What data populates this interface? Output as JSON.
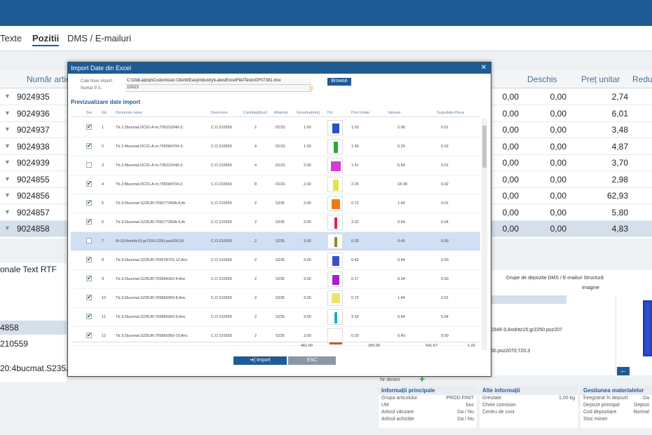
{
  "tabs": [
    "Texte",
    "Pozitii",
    "DMS / E-mailuri"
  ],
  "active_tab": "Pozitii",
  "bg_table": {
    "headers": [
      "Număr artico",
      "Deschis",
      "Preț unitar",
      "Redu"
    ],
    "rows": [
      {
        "nr": "9024935",
        "a": "0,00",
        "b": "0,00",
        "p": "2,74"
      },
      {
        "nr": "9024936",
        "a": "0,00",
        "b": "0,00",
        "p": "6,01"
      },
      {
        "nr": "9024937",
        "a": "0,00",
        "b": "0,00",
        "p": "3,48"
      },
      {
        "nr": "9024938",
        "a": "0,00",
        "b": "0,00",
        "p": "4,87"
      },
      {
        "nr": "9024939",
        "a": "0,00",
        "b": "0,00",
        "p": "3,70"
      },
      {
        "nr": "9024855",
        "a": "0,00",
        "b": "0,00",
        "p": "2,98"
      },
      {
        "nr": "9024856",
        "a": "0,00",
        "b": "0,00",
        "p": "62,93"
      },
      {
        "nr": "9024857",
        "a": "0,00",
        "b": "0,00",
        "p": "5,80"
      },
      {
        "nr": "9024858",
        "a": "0,00",
        "b": "0,00",
        "p": "4,83"
      }
    ]
  },
  "lower_left": {
    "tabs": "onale  Text RTF",
    "line1": "4858",
    "line2": "210559",
    "line3": "20:4bucmat.S235J"
  },
  "lower_right": {
    "tabs": "Grupe de depozite   DMS / E-mailuri   Structură",
    "imagine": "Imagine",
    "text1": "0349-3;Andritz15;gr2250.poz207",
    "text2": "50.poz2070;720.3"
  },
  "info_panels": {
    "p1": {
      "title": "Informații principale",
      "rows": [
        "Grupa articolului",
        "UM",
        "Articol vânzare",
        "Articol achiziție"
      ],
      "vals": [
        "PROD.FINIT",
        "buc",
        "Da / Nu",
        "Da / Nu"
      ]
    },
    "p2": {
      "title": "Alte informații",
      "rows": [
        "Greutate",
        "Cheie comision",
        "Centru de cost"
      ],
      "vals": [
        "1,00 kg",
        "",
        ""
      ]
    },
    "p3": {
      "title": "Gestiunea materialelor",
      "rows": [
        "Înregistrat în depozit",
        "Depozit principal",
        "Cod depozitare",
        "Stoc minim"
      ],
      "vals": [
        "Da",
        "Depozi",
        "Normal",
        ""
      ]
    },
    "nr_desen": "Nr desen"
  },
  "modal": {
    "title": "Import Date din Excel",
    "close": "✕",
    "fields": {
      "path_label": "Cale fisier import",
      "path_value": "C:\\OldLaptop\\Customizari Clienti\\EasyIndustry\\LatestExcelFile\\Tests\\DF07381.xlsx",
      "nr_label": "Numar P.A.",
      "nr_value": "10023"
    },
    "browse": "Browse",
    "section": "Previzualizare date import",
    "headers": [
      "Sel.",
      "No.",
      "Denumire reper",
      "Descriere",
      "Cantitate[buc]",
      "Material",
      "Grosime[mm]",
      "Pic.",
      "Pret Unitar",
      "Valoare",
      "Suprafata Piesa"
    ],
    "rows": [
      {
        "sel": true,
        "no": "1",
        "den": "Tb.1:2bucmat.DC01-A-m;705210349-3;",
        "desc": "C.O 210559",
        "qty": "2",
        "mat": "DC01",
        "gros": "1.00",
        "pret": "1.03",
        "val": "2.06",
        "supr": "0.01",
        "color": "#2b4fc6"
      },
      {
        "sel": true,
        "no": "2",
        "den": "Tb.1:4bucmat.DC01-A-m;705584704-3;",
        "desc": "C.O 210559",
        "qty": "4",
        "mat": "DC01",
        "gros": "1.00",
        "pret": "1.55",
        "val": "6.20",
        "supr": "0.02",
        "color": "#27a83a"
      },
      {
        "sel": false,
        "no": "3",
        "den": "Tb.2:4bucmat.DC01-A-m;705210349-2;",
        "desc": "C.O 210559",
        "qty": "4",
        "mat": "DC01",
        "gros": "2.00",
        "pret": "1.41",
        "val": "5.64",
        "supr": "0.01",
        "color": "#d13fd0"
      },
      {
        "sel": true,
        "no": "4",
        "den": "Tb.2:8bucmat.DC01-A-m;705584704-2;",
        "desc": "C.O 210559",
        "qty": "8",
        "mat": "DC01",
        "gros": "2.00",
        "pret": "2.26",
        "val": "18.08",
        "supr": "0.02",
        "color": "#e8e24a"
      },
      {
        "sel": true,
        "no": "5",
        "den": "Tb.3:2bucmat.S235JR;705577369A-8;Ar",
        "desc": "C.O 210559",
        "qty": "2",
        "mat": "S235",
        "gros": "3.00",
        "pret": "0.72",
        "val": "1.44",
        "supr": "0.01",
        "color": "#f07a12"
      },
      {
        "sel": true,
        "no": "6",
        "den": "Tb.3:2bucmat.S235JR;705577369A-9;Ar",
        "desc": "C.O 210559",
        "qty": "2",
        "mat": "S235",
        "gros": "3.00",
        "pret": "3.32",
        "val": "6.64",
        "supr": "0.04",
        "color": "#d8245a"
      },
      {
        "sel": false,
        "no": "7",
        "den": "M-10;Andritz15;gr2150-2250.poz300;10",
        "desc": "C.O 210559",
        "qty": "2",
        "mat": "S235",
        "gros": "3.00",
        "pret": "0.20",
        "val": "0.40",
        "supr": "0.00",
        "color": "#8a8a2a"
      },
      {
        "sel": true,
        "no": "8",
        "den": "Tb.3:2bucmat.S235JR;705578701-12;Anc",
        "desc": "C.O 210559",
        "qty": "2",
        "mat": "S235",
        "gros": "3.00",
        "pret": "0.42",
        "val": "0.84",
        "supr": "0.00",
        "color": "#3a52c8"
      },
      {
        "sel": true,
        "no": "9",
        "den": "Tb.3:2bucmat.S235JR;705584363-4;Anc",
        "desc": "C.O 210559",
        "qty": "2",
        "mat": "S235",
        "gros": "3.00",
        "pret": "0.17",
        "val": "0.34",
        "supr": "0.00",
        "color": "#a420c8"
      },
      {
        "sel": true,
        "no": "10",
        "den": "Tb.3:2bucmat.S235JR;705866950-8;Anc",
        "desc": "C.O 210559",
        "qty": "2",
        "mat": "S235",
        "gros": "3.00",
        "pret": "0.72",
        "val": "1.44",
        "supr": "0.01",
        "color": "#eee36a"
      },
      {
        "sel": true,
        "no": "11",
        "den": "Tb.3:2bucmat.S235JR;705866950-9;Anc",
        "desc": "C.O 210559",
        "qty": "2",
        "mat": "S235",
        "gros": "3.00",
        "pret": "3.32",
        "val": "6.64",
        "supr": "0.04",
        "color": "#16b0c8"
      },
      {
        "sel": true,
        "no": "12",
        "den": "Tb.3:2bucmat.S235JR;705866950-10;Anc",
        "desc": "C.O 210559",
        "qty": "2",
        "mat": "S235",
        "gros": "3.00",
        "pret": "0.20",
        "val": "0.40",
        "supr": "0.00",
        "color": "#c85a28"
      }
    ],
    "totals": {
      "gros": "461.00",
      "pret": "255.09",
      "val": "541.67",
      "supr": "1.22"
    },
    "import": "Import",
    "esc": "ESC"
  },
  "colors": {
    "accent": "#1f5b95",
    "highlight": "#cfe0f4"
  }
}
